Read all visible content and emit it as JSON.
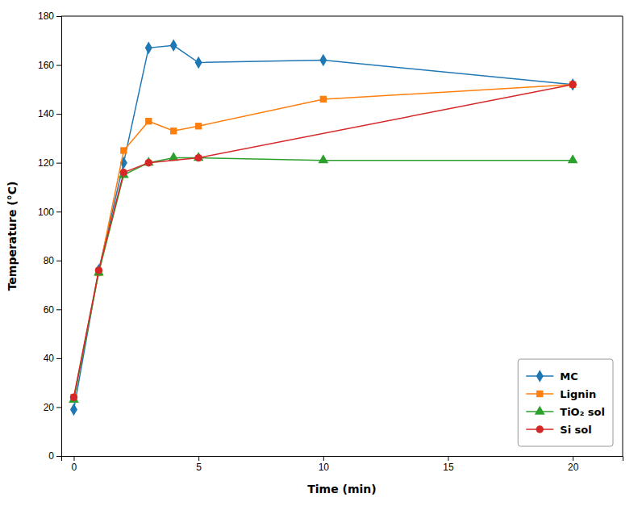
{
  "chart_data": {
    "type": "line",
    "xlabel": "Time (min)",
    "ylabel": "Temperature (°C)",
    "series": [
      {
        "name": "MC",
        "marker": "diamond",
        "x": [
          0,
          1,
          2,
          3,
          4,
          5,
          10,
          20
        ],
        "values": [
          19,
          76,
          120,
          167,
          168,
          161,
          162,
          152
        ]
      },
      {
        "name": "Lignin",
        "marker": "square",
        "x": [
          0,
          1,
          2,
          3,
          4,
          5,
          10,
          20
        ],
        "values": [
          24,
          75,
          125,
          137,
          133,
          135,
          146,
          152
        ]
      },
      {
        "name": "TiO₂ sol",
        "marker": "triangle",
        "x": [
          0,
          1,
          2,
          3,
          4,
          5,
          10,
          20
        ],
        "values": [
          23,
          75,
          115,
          120,
          122,
          122,
          121,
          121
        ]
      },
      {
        "name": "Si sol",
        "marker": "circle",
        "x": [
          0,
          1,
          2,
          3,
          5,
          20
        ],
        "values": [
          24,
          76,
          116,
          120,
          122,
          152
        ]
      }
    ],
    "xlim": [
      -0.5,
      22
    ],
    "ylim": [
      0,
      180
    ],
    "xticks": [
      0,
      5,
      10,
      15,
      20
    ],
    "yticks": [
      0,
      20,
      40,
      60,
      80,
      100,
      120,
      140,
      160,
      180
    ],
    "grid": false,
    "legend": "lower right"
  }
}
